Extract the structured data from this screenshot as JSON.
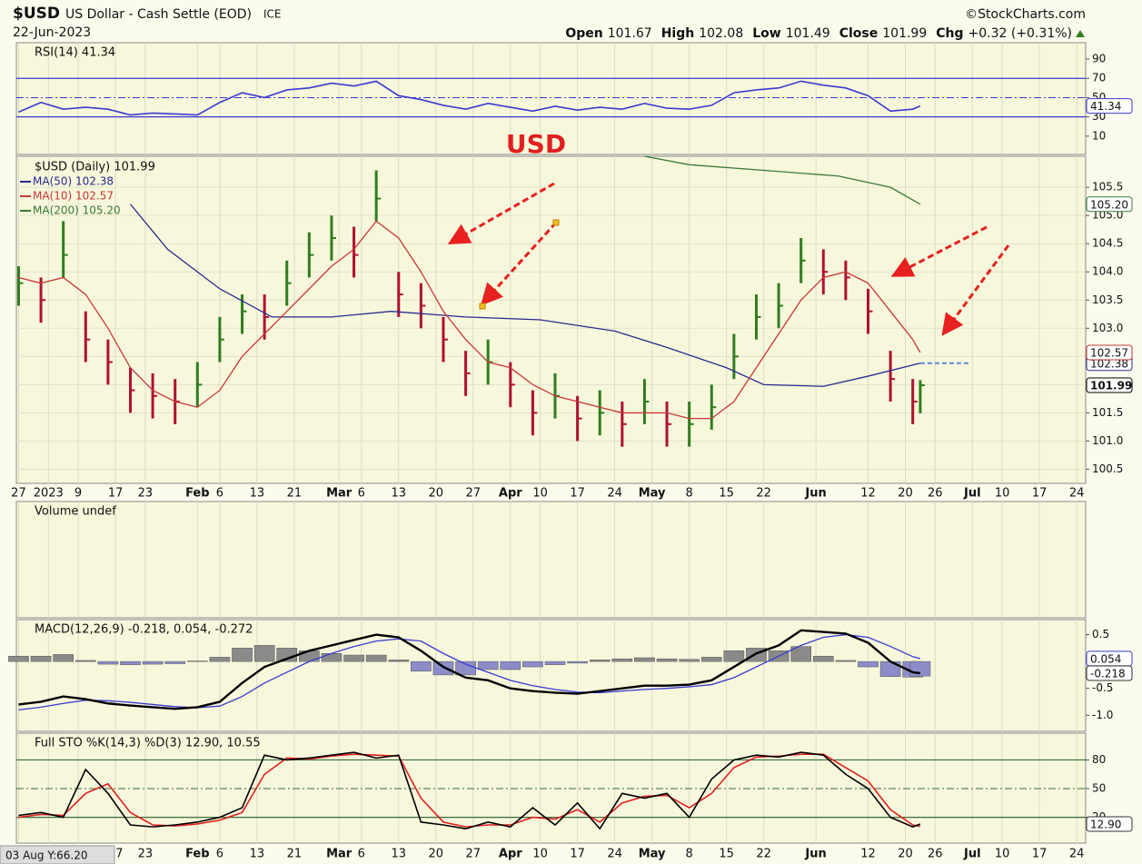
{
  "header": {
    "symbol": "$USD",
    "name": "US Dollar - Cash Settle (EOD)",
    "exchange": "ICE",
    "source": "©StockCharts.com",
    "date": "22-Jun-2023",
    "quote": [
      {
        "label": "Open",
        "value": "101.67"
      },
      {
        "label": "High",
        "value": "102.08"
      },
      {
        "label": "Low",
        "value": "101.49"
      },
      {
        "label": "Close",
        "value": "101.99"
      },
      {
        "label": "Chg",
        "value": "+0.32 (+0.31%)"
      }
    ],
    "cursor": "03 Aug Y:66.20"
  },
  "annotation": "USD",
  "chart_data": [
    {
      "type": "line",
      "title": "RSI(14) 41.34",
      "ylim": [
        -9,
        107
      ],
      "yticks": [
        90,
        70,
        50,
        30,
        10
      ],
      "reference_lines": [
        70,
        50,
        30
      ],
      "x": [
        0,
        3,
        6,
        9,
        12,
        15,
        18,
        21,
        24,
        27,
        30,
        33,
        36,
        39,
        42,
        45,
        48,
        51,
        54,
        57,
        60,
        63,
        66,
        69,
        72,
        75,
        78,
        81,
        84,
        87,
        90,
        93,
        96,
        99,
        102,
        105,
        108,
        111,
        114,
        117,
        120,
        121
      ],
      "series": [
        {
          "color": "#3a3ad0",
          "tag": "41.34",
          "values": [
            35,
            45,
            38,
            40,
            38,
            32,
            34,
            33,
            32,
            45,
            55,
            50,
            58,
            60,
            65,
            62,
            67,
            52,
            48,
            42,
            38,
            44,
            40,
            36,
            41,
            37,
            40,
            38,
            44,
            39,
            38,
            42,
            55,
            58,
            60,
            67,
            63,
            60,
            52,
            36,
            38,
            41.34
          ]
        }
      ]
    },
    {
      "type": "ohlc",
      "name": "$USD (Daily) 101.99",
      "tag": "101.99",
      "up_color": "#2e7d1e",
      "down_color": "#b01030",
      "xlim": [
        -0.3,
        143.2
      ],
      "xticks": [
        {
          "value": 0,
          "label": "27"
        },
        {
          "value": 4,
          "label": "2023"
        },
        {
          "value": 8,
          "label": "9"
        },
        {
          "value": 13,
          "label": "17"
        },
        {
          "value": 17,
          "label": "23"
        },
        {
          "value": 24,
          "label": "Feb"
        },
        {
          "value": 27,
          "label": "6"
        },
        {
          "value": 32,
          "label": "13"
        },
        {
          "value": 37,
          "label": "21"
        },
        {
          "value": 43,
          "label": "Mar"
        },
        {
          "value": 46,
          "label": "6"
        },
        {
          "value": 51,
          "label": "13"
        },
        {
          "value": 56,
          "label": "20"
        },
        {
          "value": 61,
          "label": "27"
        },
        {
          "value": 66,
          "label": "Apr"
        },
        {
          "value": 70,
          "label": "10"
        },
        {
          "value": 75,
          "label": "17"
        },
        {
          "value": 80,
          "label": "24"
        },
        {
          "value": 85,
          "label": "May"
        },
        {
          "value": 90,
          "label": "8"
        },
        {
          "value": 95,
          "label": "15"
        },
        {
          "value": 100,
          "label": "22"
        },
        {
          "value": 107,
          "label": "Jun"
        },
        {
          "value": 114,
          "label": "12"
        },
        {
          "value": 119,
          "label": "20"
        },
        {
          "value": 123,
          "label": "26"
        },
        {
          "value": 128,
          "label": "Jul"
        },
        {
          "value": 132,
          "label": "10"
        },
        {
          "value": 137,
          "label": "17"
        },
        {
          "value": 142,
          "label": "24"
        }
      ],
      "ylim": [
        100.25,
        106.05
      ],
      "yticks": [
        100.5,
        {
          "value": 101,
          "label": "101.0"
        },
        101.5,
        {
          "value": 102,
          "label": "102.0"
        },
        102.5,
        {
          "value": 103,
          "label": "103.0"
        },
        103.5,
        {
          "value": 104,
          "label": "104.0"
        },
        104.5,
        {
          "value": 105,
          "label": "105.0"
        },
        105.5
      ],
      "x": [
        0,
        3,
        6,
        9,
        12,
        15,
        18,
        21,
        24,
        27,
        30,
        33,
        36,
        39,
        42,
        45,
        48,
        51,
        54,
        57,
        60,
        63,
        66,
        69,
        72,
        75,
        78,
        81,
        84,
        87,
        90,
        93,
        96,
        99,
        102,
        105,
        108,
        111,
        114,
        117,
        120,
        121
      ],
      "high": [
        104.1,
        103.9,
        104.9,
        103.3,
        102.8,
        102.3,
        102.2,
        102.1,
        102.4,
        103.2,
        103.6,
        103.6,
        104.2,
        104.7,
        105.0,
        104.8,
        105.8,
        104.0,
        103.8,
        103.2,
        102.6,
        102.8,
        102.4,
        101.9,
        102.2,
        101.8,
        101.9,
        101.7,
        102.1,
        101.7,
        101.7,
        102.0,
        102.9,
        103.6,
        103.8,
        104.6,
        104.4,
        104.2,
        103.7,
        102.6,
        102.1,
        102.08
      ],
      "low": [
        103.4,
        103.1,
        103.9,
        102.4,
        102.0,
        101.5,
        101.4,
        101.3,
        101.6,
        102.4,
        102.9,
        102.8,
        103.4,
        103.9,
        104.2,
        103.9,
        104.9,
        103.2,
        103.0,
        102.4,
        101.8,
        102.0,
        101.6,
        101.1,
        101.4,
        101.0,
        101.1,
        100.9,
        101.3,
        100.9,
        100.9,
        101.2,
        102.1,
        102.8,
        103.0,
        103.8,
        103.6,
        103.5,
        102.9,
        101.7,
        101.3,
        101.49
      ],
      "close": [
        103.8,
        103.5,
        104.3,
        102.8,
        102.4,
        101.9,
        101.8,
        101.7,
        102.0,
        102.8,
        103.3,
        103.2,
        103.8,
        104.3,
        104.6,
        104.3,
        105.3,
        103.6,
        103.4,
        102.8,
        102.2,
        102.4,
        102.0,
        101.5,
        101.8,
        101.4,
        101.5,
        101.3,
        101.7,
        101.3,
        101.3,
        101.6,
        102.5,
        103.2,
        103.4,
        104.2,
        104.0,
        103.9,
        103.3,
        102.1,
        101.7,
        101.99
      ],
      "series": [
        {
          "name": "MA(50) 102.38",
          "color": "#2a2a90",
          "tag": "102.38",
          "projection": true,
          "x": [
            15,
            20,
            27,
            34,
            42,
            50,
            60,
            70,
            80,
            87,
            95,
            100,
            108,
            114,
            121
          ],
          "values": [
            105.2,
            104.4,
            103.7,
            103.2,
            103.2,
            103.3,
            103.2,
            103.15,
            102.95,
            102.66,
            102.3,
            102.0,
            101.97,
            102.15,
            102.38
          ]
        },
        {
          "name": "MA(10) 102.57",
          "color": "#c83838",
          "tag": "102.57",
          "x": [
            0,
            3,
            6,
            9,
            12,
            15,
            18,
            21,
            24,
            27,
            30,
            33,
            36,
            39,
            42,
            45,
            48,
            51,
            54,
            57,
            60,
            63,
            66,
            69,
            72,
            75,
            78,
            81,
            84,
            87,
            90,
            93,
            96,
            99,
            102,
            105,
            108,
            111,
            114,
            117,
            120,
            121
          ],
          "values": [
            103.9,
            103.8,
            103.9,
            103.6,
            103.0,
            102.3,
            101.9,
            101.7,
            101.6,
            101.9,
            102.5,
            102.9,
            103.3,
            103.7,
            104.1,
            104.4,
            104.9,
            104.6,
            104.0,
            103.3,
            102.8,
            102.4,
            102.3,
            102.0,
            101.8,
            101.7,
            101.6,
            101.5,
            101.5,
            101.5,
            101.4,
            101.4,
            101.7,
            102.3,
            102.9,
            103.5,
            103.9,
            104.0,
            103.8,
            103.3,
            102.8,
            102.57
          ]
        },
        {
          "name": "MA(200) 105.20",
          "color": "#3a7a3a",
          "tag": "105.20",
          "x": [
            84,
            90,
            100,
            110,
            117,
            121
          ],
          "values": [
            106.05,
            105.9,
            105.8,
            105.7,
            105.5,
            105.2
          ]
        }
      ]
    },
    {
      "type": "volume",
      "title": "Volume undef"
    },
    {
      "type": "macd",
      "title": "MACD(12,26,9) -0.218, 0.054, -0.272",
      "ylim": [
        -1.3,
        0.78
      ],
      "yticks": [
        0.5,
        -0.5,
        {
          "value": -1,
          "label": "-1.0"
        }
      ],
      "x": [
        0,
        3,
        6,
        9,
        12,
        15,
        18,
        21,
        24,
        27,
        30,
        33,
        36,
        39,
        42,
        45,
        48,
        51,
        54,
        57,
        60,
        63,
        66,
        69,
        72,
        75,
        78,
        81,
        84,
        87,
        90,
        93,
        96,
        99,
        102,
        105,
        108,
        111,
        114,
        117,
        120,
        121
      ],
      "histogram": {
        "color": "#8a8a8a",
        "negative_color": "#8c8cc8",
        "values": [
          0.1,
          0.1,
          0.13,
          0.02,
          -0.05,
          -0.06,
          -0.05,
          -0.04,
          0.01,
          0.08,
          0.25,
          0.3,
          0.25,
          0.2,
          0.15,
          0.12,
          0.12,
          0.03,
          -0.18,
          -0.25,
          -0.25,
          -0.15,
          -0.15,
          -0.1,
          -0.06,
          -0.03,
          0.03,
          0.05,
          0.07,
          0.05,
          0.04,
          0.08,
          0.2,
          0.25,
          0.2,
          0.28,
          0.1,
          0.02,
          -0.1,
          -0.28,
          -0.29,
          -0.272
        ]
      },
      "series": [
        {
          "color": "#3a3ad0",
          "tag": "0.054",
          "values": [
            -0.9,
            -0.85,
            -0.78,
            -0.72,
            -0.73,
            -0.76,
            -0.8,
            -0.84,
            -0.86,
            -0.83,
            -0.65,
            -0.4,
            -0.2,
            0.0,
            0.15,
            0.28,
            0.38,
            0.42,
            0.38,
            0.15,
            -0.05,
            -0.2,
            -0.35,
            -0.45,
            -0.52,
            -0.57,
            -0.58,
            -0.55,
            -0.52,
            -0.5,
            -0.47,
            -0.43,
            -0.3,
            -0.1,
            0.1,
            0.3,
            0.45,
            0.5,
            0.45,
            0.28,
            0.09,
            0.054
          ]
        },
        {
          "color": "#000000",
          "tag": "-0.218",
          "values": [
            -0.8,
            -0.75,
            -0.65,
            -0.7,
            -0.78,
            -0.82,
            -0.85,
            -0.88,
            -0.85,
            -0.75,
            -0.4,
            -0.1,
            0.05,
            0.2,
            0.3,
            0.4,
            0.5,
            0.45,
            0.2,
            -0.1,
            -0.3,
            -0.35,
            -0.5,
            -0.55,
            -0.58,
            -0.6,
            -0.55,
            -0.5,
            -0.45,
            -0.45,
            -0.43,
            -0.35,
            -0.1,
            0.15,
            0.3,
            0.58,
            0.55,
            0.52,
            0.35,
            0.0,
            -0.2,
            -0.218
          ]
        }
      ]
    },
    {
      "type": "line",
      "title": "Full STO %K(14,3) %D(3) 12.90, 10.55",
      "ylim": [
        -7,
        108
      ],
      "yticks": [
        80,
        50,
        20
      ],
      "reference_lines": [
        80,
        50,
        20
      ],
      "x": [
        0,
        3,
        6,
        9,
        12,
        15,
        18,
        21,
        24,
        27,
        30,
        33,
        36,
        39,
        42,
        45,
        48,
        51,
        54,
        57,
        60,
        63,
        66,
        69,
        72,
        75,
        78,
        81,
        84,
        87,
        90,
        93,
        96,
        99,
        102,
        105,
        108,
        111,
        114,
        117,
        120,
        121
      ],
      "series": [
        {
          "color": "#e02020",
          "values": [
            20,
            23,
            22,
            45,
            55,
            25,
            12,
            11,
            13,
            17,
            25,
            65,
            82,
            81,
            84,
            86,
            85,
            84,
            40,
            15,
            10,
            12,
            12,
            20,
            18,
            28,
            15,
            35,
            42,
            43,
            30,
            45,
            72,
            83,
            84,
            86,
            86,
            72,
            58,
            28,
            12,
            10.55
          ]
        },
        {
          "color": "#000000",
          "tag": "12.90",
          "values": [
            22,
            25,
            20,
            70,
            45,
            12,
            10,
            12,
            15,
            20,
            30,
            85,
            80,
            82,
            85,
            88,
            82,
            85,
            15,
            12,
            8,
            15,
            10,
            30,
            12,
            35,
            8,
            45,
            40,
            45,
            20,
            60,
            80,
            85,
            83,
            88,
            85,
            65,
            50,
            20,
            10,
            12.9
          ]
        }
      ]
    }
  ]
}
